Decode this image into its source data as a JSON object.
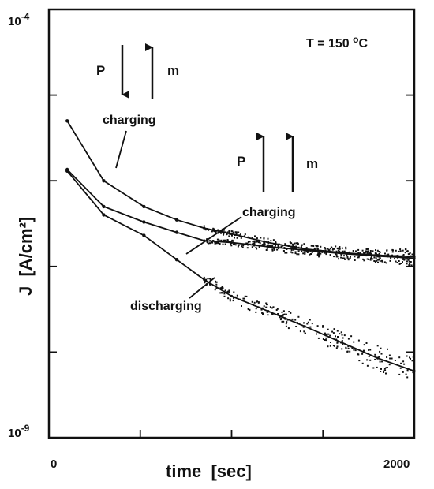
{
  "chart_data": {
    "type": "line",
    "title": "",
    "xlabel": "time  [sec]",
    "ylabel": "J  [A/cm²]",
    "xlim": [
      0,
      2000
    ],
    "ylim": [
      1e-09,
      0.0001
    ],
    "y_scale": "log",
    "x_tick_labels": [
      "0",
      "2000"
    ],
    "y_tick_labels": [
      {
        "value": 0.0001,
        "base": "10",
        "exp": "-4"
      },
      {
        "value": 1e-09,
        "base": "10",
        "exp": "-9"
      }
    ],
    "grid": false,
    "legend": "none",
    "annotations": {
      "temperature": {
        "prefix": "T = 150 ",
        "unit_sup": "o",
        "unit": "C"
      },
      "charging_1": "charging",
      "charging_2": "charging",
      "discharging": "discharging",
      "p_1": "P",
      "m_1": "m",
      "p_2": "P",
      "m_2": "m"
    },
    "series": [
      {
        "points": [
          [
            100,
            5e-06
          ],
          [
            300,
            1e-06
          ],
          [
            520,
            5e-07
          ],
          [
            700,
            3.5e-07
          ],
          [
            850,
            2.8e-07
          ],
          [
            1000,
            2.4e-07
          ],
          [
            1200,
            1.9e-07
          ],
          [
            1400,
            1.6e-07
          ],
          [
            1600,
            1.45e-07
          ],
          [
            1800,
            1.35e-07
          ],
          [
            2000,
            1.3e-07
          ]
        ]
      },
      {
        "points": [
          [
            100,
            1.35e-06
          ],
          [
            300,
            5e-07
          ],
          [
            520,
            3.3e-07
          ],
          [
            700,
            2.5e-07
          ],
          [
            850,
            2e-07
          ],
          [
            1000,
            1.9e-07
          ],
          [
            1200,
            1.7e-07
          ],
          [
            1400,
            1.55e-07
          ],
          [
            1600,
            1.42e-07
          ],
          [
            1800,
            1.32e-07
          ],
          [
            2000,
            1.25e-07
          ]
        ]
      },
      {
        "points": [
          [
            100,
            1.3e-06
          ],
          [
            300,
            4e-07
          ],
          [
            520,
            2.3e-07
          ],
          [
            700,
            1.2e-07
          ],
          [
            850,
            7e-08
          ],
          [
            1000,
            4.5e-08
          ],
          [
            1200,
            3e-08
          ],
          [
            1400,
            2e-08
          ],
          [
            1600,
            1.3e-08
          ],
          [
            1800,
            8.5e-09
          ],
          [
            2000,
            6e-09
          ]
        ]
      }
    ],
    "arrows": [
      {
        "label": "P",
        "direction": "down"
      },
      {
        "label": "m",
        "direction": "up"
      },
      {
        "label": "P",
        "direction": "up"
      },
      {
        "label": "m",
        "direction": "up"
      }
    ]
  }
}
